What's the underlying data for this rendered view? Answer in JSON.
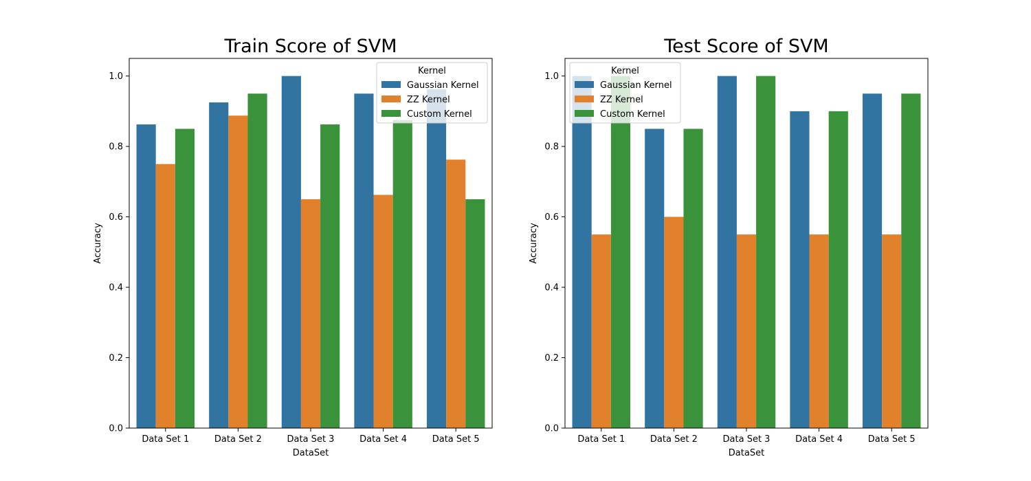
{
  "chart_data": [
    {
      "type": "bar",
      "title": "Train Score of SVM",
      "xlabel": "DataSet",
      "ylabel": "Accuracy",
      "ylim": [
        0,
        1.05
      ],
      "yticks": [
        "0.0",
        "0.2",
        "0.4",
        "0.6",
        "0.8",
        "1.0"
      ],
      "categories": [
        "Data Set 1",
        "Data Set 2",
        "Data Set 3",
        "Data Set 4",
        "Data Set 5"
      ],
      "legend": {
        "title": "Kernel",
        "placement": "top-right"
      },
      "series": [
        {
          "name": "Gaussian Kernel",
          "color": "#3274a1",
          "values": [
            0.8625,
            0.925,
            1.0,
            0.95,
            0.9625
          ]
        },
        {
          "name": "ZZ Kernel",
          "color": "#e1812c",
          "values": [
            0.75,
            0.8875,
            0.65,
            0.6625,
            0.7625
          ]
        },
        {
          "name": "Custom Kernel",
          "color": "#3a923a",
          "values": [
            0.85,
            0.95,
            0.8625,
            0.875,
            0.65
          ]
        }
      ]
    },
    {
      "type": "bar",
      "title": "Test Score of SVM",
      "xlabel": "DataSet",
      "ylabel": "Accuracy",
      "ylim": [
        0,
        1.05
      ],
      "yticks": [
        "0.0",
        "0.2",
        "0.4",
        "0.6",
        "0.8",
        "1.0"
      ],
      "categories": [
        "Data Set 1",
        "Data Set 2",
        "Data Set 3",
        "Data Set 4",
        "Data Set 5"
      ],
      "legend": {
        "title": "Kernel",
        "placement": "top-left"
      },
      "series": [
        {
          "name": "Gaussian Kernel",
          "color": "#3274a1",
          "values": [
            1.0,
            0.85,
            1.0,
            0.9,
            0.95
          ]
        },
        {
          "name": "ZZ Kernel",
          "color": "#e1812c",
          "values": [
            0.55,
            0.6,
            0.55,
            0.55,
            0.55
          ]
        },
        {
          "name": "Custom Kernel",
          "color": "#3a923a",
          "values": [
            1.0,
            0.85,
            1.0,
            0.9,
            0.95
          ]
        }
      ]
    }
  ]
}
